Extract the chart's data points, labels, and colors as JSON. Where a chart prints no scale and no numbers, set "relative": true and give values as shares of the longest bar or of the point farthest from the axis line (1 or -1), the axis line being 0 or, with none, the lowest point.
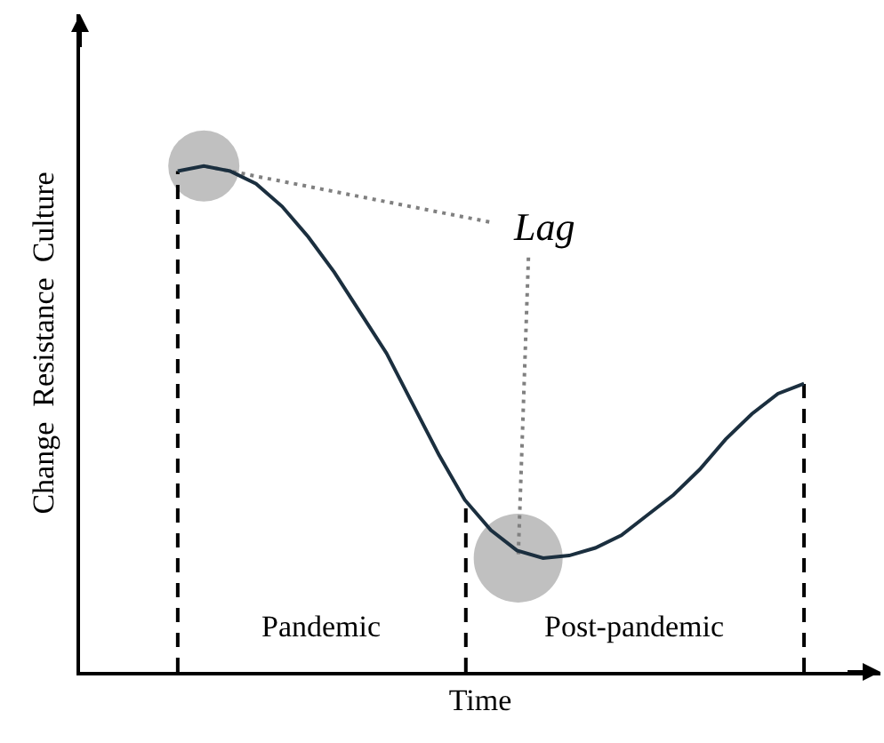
{
  "chart_data": {
    "type": "line",
    "relative": true,
    "xlabel": "Time",
    "ylabel": "Change  Resistance  Culture",
    "annotations": [
      "Lag",
      "Pandemic",
      "Post-pandemic"
    ],
    "categories": [
      null,
      null,
      null,
      null,
      null,
      null,
      null,
      null,
      null,
      null,
      null,
      null,
      null,
      null,
      null,
      null,
      null,
      null,
      null,
      null,
      null,
      null,
      null,
      null,
      null
    ],
    "series": [
      {
        "color": "#1b2f3f",
        "values": [
          0.99,
          1,
          0.99,
          0.965,
          0.92,
          0.86,
          0.79,
          0.71,
          0.63,
          0.53,
          0.43,
          0.34,
          0.28,
          0.24,
          0.225,
          0.23,
          0.245,
          0.27,
          0.31,
          0.35,
          0.4,
          0.46,
          0.51,
          0.55,
          0.57
        ]
      }
    ]
  }
}
